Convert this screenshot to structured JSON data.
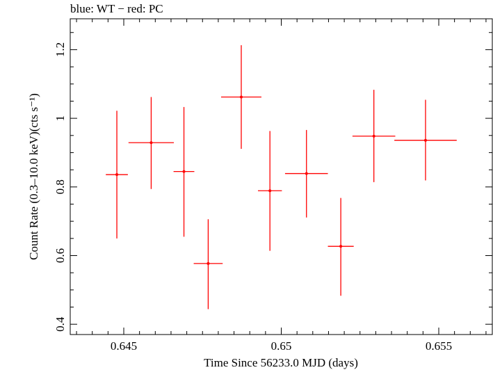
{
  "chart_data": {
    "type": "scatter",
    "title": "blue: WT − red: PC",
    "xlabel": "Time Since 56233.0 MJD (days)",
    "ylabel": "Count Rate (0.3–10.0 keV)(cts s⁻¹)",
    "xlim": [
      0.6433,
      0.6567
    ],
    "ylim": [
      0.37,
      1.29
    ],
    "x_ticks": [
      0.645,
      0.65,
      0.655
    ],
    "x_tick_labels": [
      "0.645",
      "0.65",
      "0.655"
    ],
    "y_ticks": [
      0.4,
      0.6,
      0.8,
      1.0,
      1.2
    ],
    "y_tick_labels": [
      "0.4",
      "0.6",
      "0.8",
      "1",
      "1.2"
    ],
    "grid": false,
    "series": [
      {
        "color": "#ff0000",
        "points": [
          {
            "x": 0.64478,
            "y": 0.836,
            "xerr": 0.00035,
            "yerr_lo": 0.186,
            "yerr_hi": 0.186
          },
          {
            "x": 0.64587,
            "y": 0.929,
            "xerr": 0.00072,
            "yerr_lo": 0.135,
            "yerr_hi": 0.133
          },
          {
            "x": 0.64691,
            "y": 0.845,
            "xerr": 0.00033,
            "yerr_lo": 0.19,
            "yerr_hi": 0.188
          },
          {
            "x": 0.64768,
            "y": 0.577,
            "xerr": 0.00046,
            "yerr_lo": 0.133,
            "yerr_hi": 0.129
          },
          {
            "x": 0.64873,
            "y": 1.062,
            "xerr": 0.00064,
            "yerr_lo": 0.151,
            "yerr_hi": 0.151
          },
          {
            "x": 0.64964,
            "y": 0.789,
            "xerr": 0.00038,
            "yerr_lo": 0.175,
            "yerr_hi": 0.174
          },
          {
            "x": 0.6508,
            "y": 0.839,
            "xerr": 0.00068,
            "yerr_lo": 0.128,
            "yerr_hi": 0.127
          },
          {
            "x": 0.65189,
            "y": 0.627,
            "xerr": 0.00041,
            "yerr_lo": 0.144,
            "yerr_hi": 0.141
          },
          {
            "x": 0.65294,
            "y": 0.948,
            "xerr": 0.00068,
            "yerr_lo": 0.134,
            "yerr_hi": 0.135
          },
          {
            "x": 0.65458,
            "y": 0.936,
            "xerr": 0.00099,
            "yerr_lo": 0.117,
            "yerr_hi": 0.118
          }
        ]
      }
    ]
  }
}
